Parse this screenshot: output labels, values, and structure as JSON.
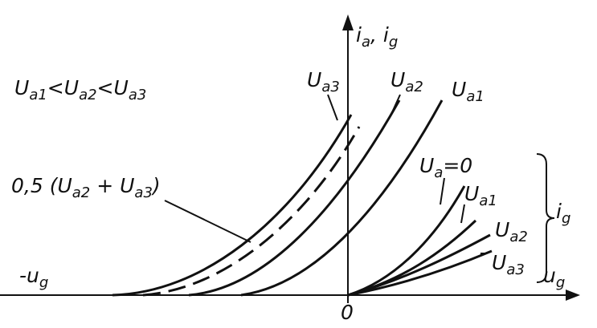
{
  "axes": {
    "vertical_label": {
      "terms": [
        {
          "symbol": "i",
          "subscript": "a"
        },
        {
          "symbol": "i",
          "subscript": "g"
        }
      ],
      "separator": ", "
    },
    "horizontal_label": {
      "symbol": "u",
      "subscript": "g"
    },
    "negative_label": {
      "symbol": "-u",
      "subscript": "g"
    },
    "origin": "0"
  },
  "condition": {
    "terms": [
      {
        "symbol": "U",
        "subscript": "a1"
      },
      {
        "symbol": "U",
        "subscript": "a2"
      },
      {
        "symbol": "U",
        "subscript": "a3"
      }
    ],
    "relation": "<"
  },
  "anode_curves": [
    {
      "symbol": "U",
      "subscript": "a3"
    },
    {
      "symbol": "U",
      "subscript": "a2"
    },
    {
      "symbol": "U",
      "subscript": "a1"
    }
  ],
  "dashed_curve": {
    "coefficient": "0,5 (",
    "terms": [
      {
        "symbol": "U",
        "subscript": "a2"
      },
      {
        "symbol": "U",
        "subscript": "a3"
      }
    ],
    "operator": " + ",
    "close": ")"
  },
  "grid_curves": [
    {
      "symbol": "U",
      "subscript": "a",
      "suffix": "=0"
    },
    {
      "symbol": "U",
      "subscript": "a1"
    },
    {
      "symbol": "U",
      "subscript": "a2"
    },
    {
      "symbol": "U",
      "subscript": "a3"
    }
  ],
  "grid_group": {
    "symbol": "i",
    "subscript": "g"
  }
}
